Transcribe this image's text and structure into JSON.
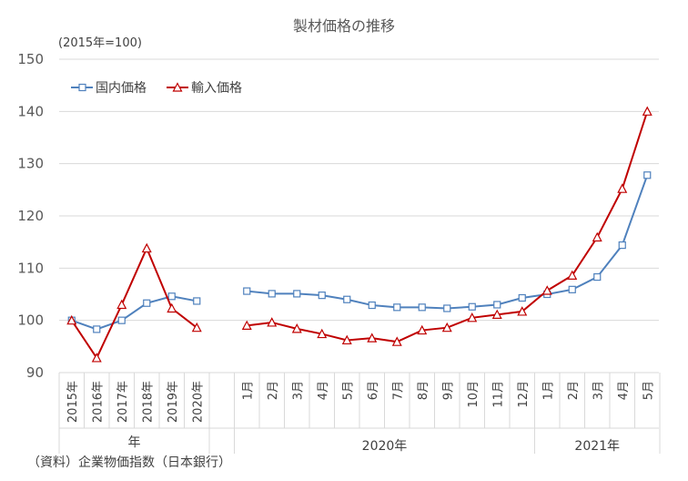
{
  "chart_data": {
    "type": "line",
    "title": "製材価格の推移",
    "unit_label": "(2015年=100)",
    "ylim": [
      90,
      150
    ],
    "yticks": [
      90,
      100,
      110,
      120,
      130,
      140,
      150
    ],
    "grid": true,
    "legend_position": "top-left",
    "colors": {
      "domestic": "#4f81bd",
      "import": "#c00000"
    },
    "panels": [
      {
        "group_label": "年",
        "categories": [
          "2015年",
          "2016年",
          "2017年",
          "2018年",
          "2019年",
          "2020年"
        ],
        "series": [
          {
            "name": "国内価格",
            "values": [
              100.0,
              98.3,
              100.0,
              103.3,
              104.6,
              103.7
            ]
          },
          {
            "name": "輸入価格",
            "values": [
              100.0,
              92.8,
              103.0,
              113.8,
              102.3,
              98.6
            ]
          }
        ]
      },
      {
        "group_label": "2020年",
        "categories": [
          "1月",
          "2月",
          "3月",
          "4月",
          "5月",
          "6月",
          "7月",
          "8月",
          "9月",
          "10月",
          "11月",
          "12月"
        ],
        "series": [
          {
            "name": "国内価格",
            "values": [
              105.6,
              105.1,
              105.1,
              104.8,
              104.0,
              102.9,
              102.5,
              102.5,
              102.3,
              102.6,
              103.0,
              104.3
            ]
          },
          {
            "name": "輸入価格",
            "values": [
              99.0,
              99.6,
              98.4,
              97.4,
              96.2,
              96.6,
              95.9,
              98.1,
              98.6,
              100.5,
              101.1,
              101.7
            ]
          }
        ]
      },
      {
        "group_label": "2021年",
        "categories": [
          "1月",
          "2月",
          "3月",
          "4月",
          "5月"
        ],
        "series": [
          {
            "name": "国内価格",
            "values": [
              105.0,
              105.9,
              108.3,
              114.4,
              127.8
            ]
          },
          {
            "name": "輸入価格",
            "values": [
              105.7,
              108.6,
              115.9,
              125.2,
              140.0
            ]
          }
        ]
      }
    ],
    "source": "（資料）企業物価指数（日本銀行）"
  }
}
